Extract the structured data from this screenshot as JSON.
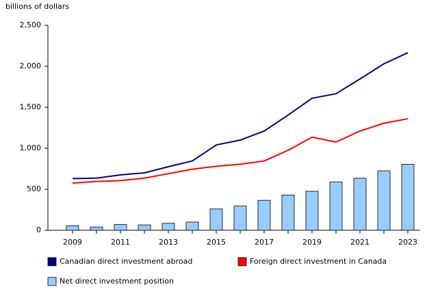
{
  "chart_data": {
    "type": "combo",
    "y_label": "billions of dollars",
    "categories": [
      "2009",
      null,
      "2011",
      null,
      "2013",
      null,
      "2015",
      null,
      "2017",
      null,
      "2019",
      null,
      "2021",
      null,
      "2023"
    ],
    "series": [
      {
        "name": "Canadian direct investment abroad",
        "type": "line",
        "color": "#000080",
        "values": [
          630,
          635,
          675,
          700,
          775,
          845,
          1040,
          1100,
          1210,
          1405,
          1610,
          1665,
          1845,
          2030,
          2165
        ]
      },
      {
        "name": "Foreign direct investment in Canada",
        "type": "line",
        "color": "#ff0000",
        "values": [
          575,
          595,
          605,
          635,
          690,
          745,
          780,
          805,
          845,
          975,
          1135,
          1075,
          1210,
          1305,
          1360
        ]
      },
      {
        "name": "Net direct investment position",
        "type": "bar",
        "color": "#99ccff",
        "values": [
          55,
          40,
          70,
          65,
          85,
          100,
          260,
          295,
          365,
          430,
          475,
          590,
          635,
          725,
          805
        ]
      }
    ],
    "ylim": [
      0,
      2500
    ],
    "yticks": [
      0,
      500,
      {
        "value": 1000,
        "label": "1,000"
      },
      {
        "value": 1500,
        "label": "1,500"
      },
      {
        "value": 2000,
        "label": "2,000"
      },
      {
        "value": 2500,
        "label": "2,500"
      }
    ]
  }
}
